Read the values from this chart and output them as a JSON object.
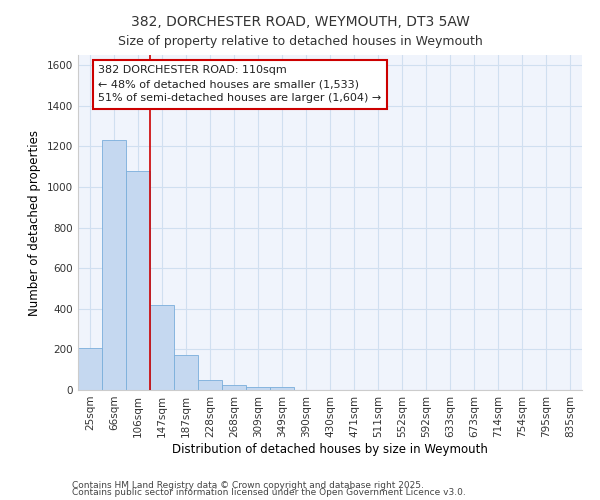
{
  "title": "382, DORCHESTER ROAD, WEYMOUTH, DT3 5AW",
  "subtitle": "Size of property relative to detached houses in Weymouth",
  "xlabel": "Distribution of detached houses by size in Weymouth",
  "ylabel": "Number of detached properties",
  "categories": [
    "25sqm",
    "66sqm",
    "106sqm",
    "147sqm",
    "187sqm",
    "228sqm",
    "268sqm",
    "309sqm",
    "349sqm",
    "390sqm",
    "430sqm",
    "471sqm",
    "511sqm",
    "552sqm",
    "592sqm",
    "633sqm",
    "673sqm",
    "714sqm",
    "754sqm",
    "795sqm",
    "835sqm"
  ],
  "bar_heights": [
    205,
    1230,
    1080,
    420,
    170,
    50,
    25,
    15,
    15,
    0,
    0,
    0,
    0,
    0,
    0,
    0,
    0,
    0,
    0,
    0,
    0
  ],
  "bar_color": "#c5d8f0",
  "bar_edge_color": "#7aaedb",
  "ylim": [
    0,
    1650
  ],
  "yticks": [
    0,
    200,
    400,
    600,
    800,
    1000,
    1200,
    1400,
    1600
  ],
  "grid_color": "#d0dff0",
  "bg_color": "#ffffff",
  "plot_bg_color": "#f0f4fc",
  "red_line_x": 2.5,
  "red_line_color": "#cc0000",
  "annotation_line1": "382 DORCHESTER ROAD: 110sqm",
  "annotation_line2": "← 48% of detached houses are smaller (1,533)",
  "annotation_line3": "51% of semi-detached houses are larger (1,604) →",
  "annotation_box_color": "#cc0000",
  "annotation_bg": "#ffffff",
  "footnote1": "Contains HM Land Registry data © Crown copyright and database right 2025.",
  "footnote2": "Contains public sector information licensed under the Open Government Licence v3.0.",
  "title_fontsize": 10,
  "subtitle_fontsize": 9,
  "label_fontsize": 8.5,
  "tick_fontsize": 7.5,
  "annotation_fontsize": 8,
  "footnote_fontsize": 6.5
}
